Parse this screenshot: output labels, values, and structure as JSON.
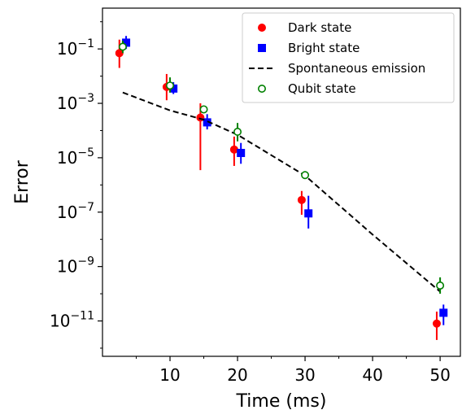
{
  "chart_data": {
    "type": "scatter",
    "xlabel": "Time (ms)",
    "ylabel": "Error",
    "xlim": [
      0,
      53
    ],
    "ylim_log10": [
      -12.3,
      0.5
    ],
    "y_scale": "log",
    "x_ticks": [
      10,
      20,
      30,
      40,
      50
    ],
    "x_tick_labels": [
      "10",
      "20",
      "30",
      "40",
      "50"
    ],
    "y_ticks": [
      -1,
      -3,
      -5,
      -7,
      -9,
      -11
    ],
    "y_tick_labels": [
      {
        "base": "10",
        "exp": "−1"
      },
      {
        "base": "10",
        "exp": "−3"
      },
      {
        "base": "10",
        "exp": "−5"
      },
      {
        "base": "10",
        "exp": "−7"
      },
      {
        "base": "10",
        "exp": "−9"
      },
      {
        "base": "10",
        "exp": "−11"
      }
    ],
    "grid": false,
    "legend_position": "top-right",
    "series": [
      {
        "name": "Dark state",
        "marker": "circle-filled",
        "color": "#ff0000",
        "points": [
          {
            "x": 2.5,
            "y": 0.07,
            "ylo": 0.02,
            "yhi": 0.22
          },
          {
            "x": 9.5,
            "y": 0.004,
            "ylo": 0.0013,
            "yhi": 0.012
          },
          {
            "x": 14.5,
            "y": 0.0003,
            "ylo": 3.5e-06,
            "yhi": 0.001
          },
          {
            "x": 19.5,
            "y": 2e-05,
            "ylo": 5e-06,
            "yhi": 6e-05
          },
          {
            "x": 29.5,
            "y": 2.8e-07,
            "ylo": 8e-08,
            "yhi": 6e-07
          },
          {
            "x": 49.5,
            "y": 8e-12,
            "ylo": 2e-12,
            "yhi": 2.2e-11
          }
        ]
      },
      {
        "name": "Bright state",
        "marker": "square-filled",
        "color": "#0000ff",
        "points": [
          {
            "x": 3.5,
            "y": 0.17,
            "ylo": 0.1,
            "yhi": 0.3
          },
          {
            "x": 10.5,
            "y": 0.0035,
            "ylo": 0.0022,
            "yhi": 0.006
          },
          {
            "x": 15.5,
            "y": 0.0002,
            "ylo": 0.00011,
            "yhi": 0.0004
          },
          {
            "x": 20.5,
            "y": 1.5e-05,
            "ylo": 6e-06,
            "yhi": 3.5e-05
          },
          {
            "x": 30.5,
            "y": 9e-08,
            "ylo": 2.5e-08,
            "yhi": 4e-07
          },
          {
            "x": 50.5,
            "y": 2e-11,
            "ylo": 7e-12,
            "yhi": 4e-11
          }
        ]
      },
      {
        "name": "Spontaneous emission",
        "marker": "dashed-line",
        "color": "#000000",
        "points": [
          {
            "x": 3,
            "y": 0.0025
          },
          {
            "x": 10,
            "y": 0.00055
          },
          {
            "x": 15,
            "y": 0.00025
          },
          {
            "x": 20,
            "y": 7e-05
          },
          {
            "x": 30,
            "y": 2.2e-06
          },
          {
            "x": 40,
            "y": 1.5e-08
          },
          {
            "x": 50,
            "y": 1.2e-10
          }
        ]
      },
      {
        "name": "Qubit state",
        "marker": "circle-open",
        "color": "#008000",
        "points": [
          {
            "x": 3,
            "y": 0.12,
            "ylo": 0.07,
            "yhi": 0.2
          },
          {
            "x": 10,
            "y": 0.0045,
            "ylo": 0.0025,
            "yhi": 0.009
          },
          {
            "x": 15,
            "y": 0.0006,
            "ylo": 0.00045,
            "yhi": 0.0008
          },
          {
            "x": 20,
            "y": 9e-05,
            "ylo": 4e-05,
            "yhi": 0.00019
          },
          {
            "x": 30,
            "y": 2.3e-06,
            "ylo": 1.7e-06,
            "yhi": 3.2e-06
          },
          {
            "x": 50,
            "y": 2e-10,
            "ylo": 1e-10,
            "yhi": 4e-10
          }
        ]
      }
    ]
  }
}
